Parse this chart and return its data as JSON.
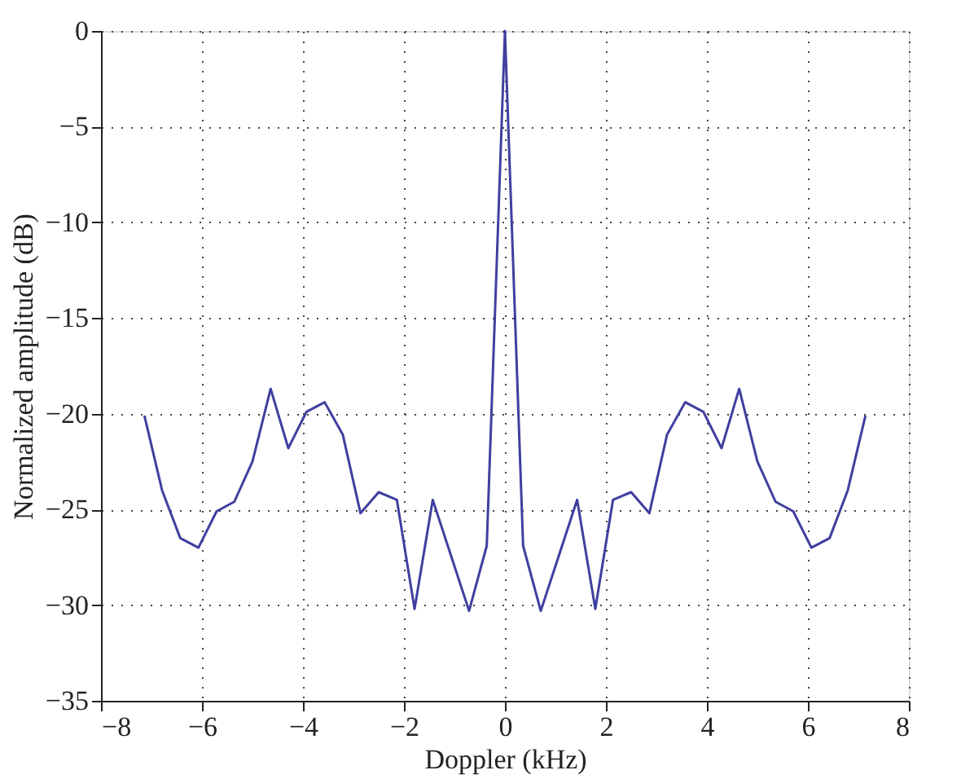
{
  "chart_data": {
    "type": "line",
    "xlabel": "Doppler (kHz)",
    "ylabel": "Normalized amplitude (dB)",
    "x": [
      -7.14,
      -6.79,
      -6.43,
      -6.07,
      -5.71,
      -5.36,
      -5.0,
      -4.64,
      -4.29,
      -3.93,
      -3.57,
      -3.21,
      -2.86,
      -2.5,
      -2.14,
      -1.79,
      -1.43,
      -1.07,
      -0.71,
      -0.36,
      0,
      0.36,
      0.71,
      1.07,
      1.43,
      1.79,
      2.14,
      2.5,
      2.86,
      3.21,
      3.57,
      3.93,
      4.29,
      4.64,
      5.0,
      5.36,
      5.71,
      6.07,
      6.43,
      6.79,
      7.14
    ],
    "series": [
      {
        "color": "#3f3f9f",
        "values": [
          -20.1,
          -24.0,
          -26.5,
          -27.0,
          -25.1,
          -24.6,
          -22.5,
          -18.7,
          -21.8,
          -19.9,
          -19.4,
          -21.1,
          -25.2,
          -24.1,
          -24.5,
          -30.2,
          -24.5,
          -27.4,
          -30.3,
          -26.9,
          0,
          -26.9,
          -30.3,
          -27.4,
          -24.5,
          -30.2,
          -24.5,
          -24.1,
          -25.2,
          -21.1,
          -19.4,
          -19.9,
          -21.8,
          -18.7,
          -22.5,
          -24.6,
          -25.1,
          -27.0,
          -26.5,
          -24.0,
          -20.1
        ]
      }
    ],
    "xlim": [
      -8,
      8
    ],
    "xticks": [
      -8,
      -6,
      -4,
      -2,
      0,
      2,
      4,
      6,
      8
    ],
    "ylim": [
      -35,
      0
    ],
    "yticks": [
      -35,
      -30,
      -25,
      -20,
      -15,
      -10,
      -5,
      0
    ],
    "grid": true,
    "marker": "none",
    "line_style": "solid"
  }
}
